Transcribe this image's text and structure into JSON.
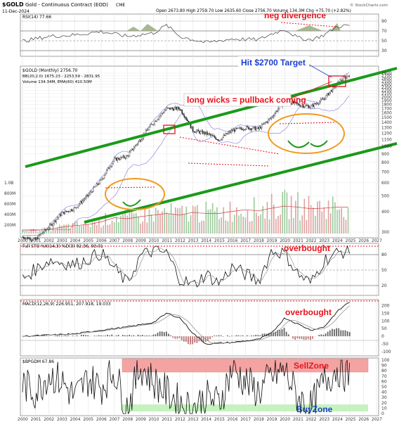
{
  "header": {
    "symbol": "$GOLD",
    "name": "Gold - Continuous Contract (EOD)",
    "exchange": "CME",
    "date": "11-Dec-2024",
    "ohlc": "Open 2673.80  High 2759.70  Low 2635.60  Close 2756.70  Volume 134.3M  Chg +75.70 (+2.82%)",
    "source": "© StockCharts.com"
  },
  "panels": {
    "rsi": {
      "label": "RSI(14) 77.66",
      "ticks": [
        "90",
        "70",
        "50",
        "30"
      ]
    },
    "price": {
      "label": "$GOLD (Monthly) 2756.70",
      "bb_label": "BB(20,2.0) 1675.23 - 2253.59 - 2831.95",
      "vol_label": "Volume 134.34M, EMA(60) 410.50M",
      "ticks": [
        "2800",
        "2700",
        "2600",
        "2500",
        "2400",
        "2300",
        "2200",
        "2100",
        "2000",
        "1900",
        "1800",
        "1700",
        "1600",
        "1500",
        "1400",
        "1300",
        "1200",
        "1100",
        "1000",
        "900",
        "800",
        "700",
        "600",
        "500",
        "400",
        "300"
      ],
      "vol_ticks": [
        "1.0B",
        "800M",
        "600M",
        "400M",
        "200M"
      ]
    },
    "sto": {
      "label": "Full STO %K(14,3) %D(3) 92.36, 93.01",
      "ticks": [
        "80",
        "50",
        "20"
      ]
    },
    "macd": {
      "label": "MACD(12,26,9) 226.951, 207.918, 19.033",
      "ticks": [
        "200",
        "150",
        "100",
        "50",
        "0",
        "-50",
        "-100"
      ]
    },
    "bpgdm": {
      "label": "$BPGDM 67.86",
      "ticks": [
        "100",
        "90",
        "80",
        "70",
        "60",
        "50",
        "40",
        "30",
        "20",
        "10",
        "0"
      ]
    }
  },
  "years": [
    "2000",
    "2001",
    "2002",
    "2003",
    "2004",
    "2005",
    "2006",
    "2007",
    "2008",
    "2009",
    "2010",
    "2011",
    "2012",
    "2013",
    "2014",
    "2015",
    "2016",
    "2017",
    "2018",
    "2019",
    "2020",
    "2021",
    "2022",
    "2023",
    "2024",
    "2025",
    "2026",
    "2027"
  ],
  "annotations": {
    "neg_div": "neg divergence",
    "target": "Hit $2700 Target",
    "wicks": "long wicks = pullback coming",
    "ob1": "overbought",
    "ob2": "overbought",
    "sell": "SellZone",
    "buy": "BuyZone"
  },
  "colors": {
    "channel": "#1a9a1a",
    "annotation": "#e8141c",
    "target": "#1a3fd0",
    "ellipse": "#f29a1f",
    "sellzone": "#f4a3a3",
    "buyzone": "#c6f2c0"
  },
  "chart_data": [
    {
      "type": "line",
      "title": "$GOLD (Monthly) 2756.70",
      "x": [
        2000,
        2001,
        2002,
        2003,
        2004,
        2005,
        2006,
        2007,
        2008,
        2009,
        2010,
        2011,
        2012,
        2013,
        2014,
        2015,
        2016,
        2017,
        2018,
        2019,
        2020,
        2021,
        2022,
        2023,
        2024,
        2024.95
      ],
      "series": [
        {
          "name": "$GOLD",
          "values": [
            280,
            270,
            320,
            390,
            420,
            500,
            620,
            830,
            870,
            1100,
            1400,
            1700,
            1700,
            1250,
            1200,
            1100,
            1250,
            1300,
            1280,
            1500,
            1900,
            1800,
            1750,
            1950,
            2400,
            2756
          ]
        }
      ],
      "ylim": [
        300,
        2800
      ],
      "log": true
    },
    {
      "type": "bar",
      "title": "Volume 134.34M, EMA(60) 410.50M",
      "x": [
        2000,
        2001,
        2002,
        2003,
        2004,
        2005,
        2006,
        2007,
        2008,
        2009,
        2010,
        2011,
        2012,
        2013,
        2014,
        2015,
        2016,
        2017,
        2018,
        2019,
        2020,
        2021,
        2022,
        2023,
        2024
      ],
      "values": [
        50,
        60,
        80,
        120,
        150,
        170,
        220,
        300,
        280,
        320,
        350,
        380,
        350,
        400,
        380,
        380,
        420,
        450,
        430,
        480,
        520,
        500,
        470,
        480,
        500
      ]
    },
    {
      "type": "line",
      "title": "RSI(14) 77.66",
      "x": [
        2000,
        2002,
        2004,
        2006,
        2008,
        2010,
        2011,
        2012,
        2014,
        2016,
        2018,
        2019,
        2020,
        2021,
        2022,
        2023,
        2024,
        2024.95
      ],
      "series": [
        {
          "name": "RSI(14)",
          "values": [
            45,
            55,
            58,
            65,
            55,
            62,
            78,
            55,
            42,
            50,
            48,
            60,
            70,
            52,
            48,
            58,
            75,
            77.66
          ]
        }
      ],
      "ylim": [
        20,
        95
      ]
    },
    {
      "type": "line",
      "title": "Full STO %K(14,3) %D(3) 92.36, 93.01",
      "x": [
        2000,
        2002,
        2004,
        2006,
        2008,
        2009,
        2010,
        2011,
        2012,
        2013,
        2014,
        2015,
        2016,
        2017,
        2018,
        2019,
        2020,
        2021,
        2022,
        2023,
        2024,
        2024.95
      ],
      "series": [
        {
          "name": "%K",
          "values": [
            30,
            70,
            60,
            85,
            20,
            80,
            90,
            85,
            30,
            15,
            40,
            20,
            55,
            40,
            25,
            90,
            85,
            40,
            20,
            70,
            85,
            92.36
          ]
        }
      ],
      "ylim": [
        0,
        100
      ]
    },
    {
      "type": "line",
      "title": "MACD(12,26,9) 226.951, 207.918, 19.033",
      "x": [
        2000,
        2004,
        2006,
        2008,
        2010,
        2011,
        2012,
        2013,
        2014,
        2016,
        2018,
        2019,
        2020,
        2021,
        2022,
        2023,
        2024,
        2024.95
      ],
      "series": [
        {
          "name": "MACD",
          "values": [
            0,
            15,
            40,
            60,
            90,
            150,
            120,
            20,
            -50,
            -40,
            -20,
            20,
            120,
            80,
            40,
            60,
            160,
            226.951
          ]
        }
      ],
      "ylim": [
        -100,
        220
      ]
    },
    {
      "type": "line",
      "title": "$BPGDM 67.86",
      "x": [
        2000,
        2001,
        2002,
        2003,
        2004,
        2005,
        2006,
        2007,
        2008,
        2009,
        2010,
        2011,
        2012,
        2013,
        2014,
        2015,
        2016,
        2017,
        2018,
        2019,
        2020,
        2021,
        2022,
        2023,
        2024,
        2024.95
      ],
      "series": [
        {
          "name": "$BPGDM",
          "values": [
            55,
            40,
            75,
            60,
            30,
            65,
            50,
            80,
            10,
            90,
            60,
            40,
            20,
            10,
            30,
            20,
            85,
            60,
            40,
            70,
            80,
            30,
            10,
            60,
            85,
            67.86
          ]
        }
      ],
      "ylim": [
        0,
        100
      ]
    }
  ]
}
